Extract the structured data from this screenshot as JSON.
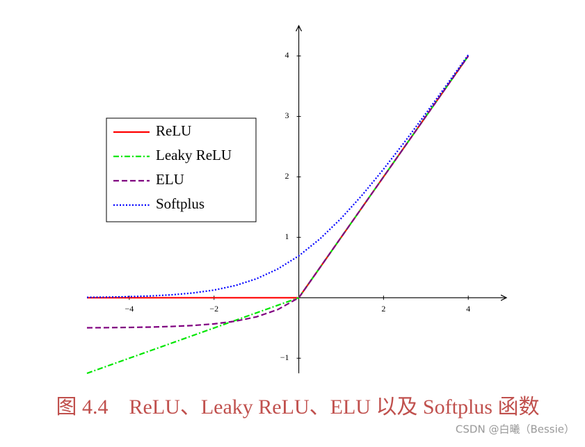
{
  "chart_data": {
    "type": "line",
    "caption": "图 4.4　ReLU、Leaky ReLU、ELU 以及 Softplus 函数",
    "watermark": "CSDN @白曦（Bessie）",
    "x": [
      -5,
      -4.5,
      -4,
      -3.5,
      -3,
      -2.5,
      -2,
      -1.5,
      -1,
      -0.5,
      0,
      0.5,
      1,
      1.5,
      2,
      2.5,
      3,
      3.5,
      4
    ],
    "series": [
      {
        "name": "ReLU",
        "color": "#ff0000",
        "style": "solid",
        "values": [
          0,
          0,
          0,
          0,
          0,
          0,
          0,
          0,
          0,
          0,
          0,
          0.5,
          1,
          1.5,
          2,
          2.5,
          3,
          3.5,
          4
        ]
      },
      {
        "name": "Leaky ReLU",
        "color": "#00e600",
        "style": "dashdot",
        "values": [
          -1.25,
          -1.125,
          -1,
          -0.875,
          -0.75,
          -0.625,
          -0.5,
          -0.375,
          -0.25,
          -0.125,
          0,
          0.5,
          1,
          1.5,
          2,
          2.5,
          3,
          3.5,
          4
        ]
      },
      {
        "name": "ELU",
        "color": "#800080",
        "style": "dashed",
        "values": [
          -0.4966,
          -0.4944,
          -0.4908,
          -0.4849,
          -0.4751,
          -0.459,
          -0.4323,
          -0.3884,
          -0.3161,
          -0.1967,
          0,
          0.5,
          1,
          1.5,
          2,
          2.5,
          3,
          3.5,
          4
        ]
      },
      {
        "name": "Softplus",
        "color": "#0000ff",
        "style": "dotted",
        "values": [
          0.0067,
          0.011,
          0.0181,
          0.0298,
          0.0486,
          0.0789,
          0.1269,
          0.2014,
          0.3133,
          0.4741,
          0.6931,
          0.9741,
          1.3133,
          1.7014,
          2.1269,
          2.5789,
          3.0486,
          3.5298,
          4.0181
        ]
      }
    ],
    "xlim": [
      -5,
      4.9
    ],
    "ylim": [
      -1.25,
      4.5
    ],
    "xticks": [
      {
        "value": -4,
        "label": "−4"
      },
      {
        "value": -2,
        "label": "−2"
      },
      2,
      4
    ],
    "yticks": [
      {
        "value": -1,
        "label": "−1"
      },
      1,
      2,
      3,
      4
    ],
    "legend": "upper-left"
  }
}
